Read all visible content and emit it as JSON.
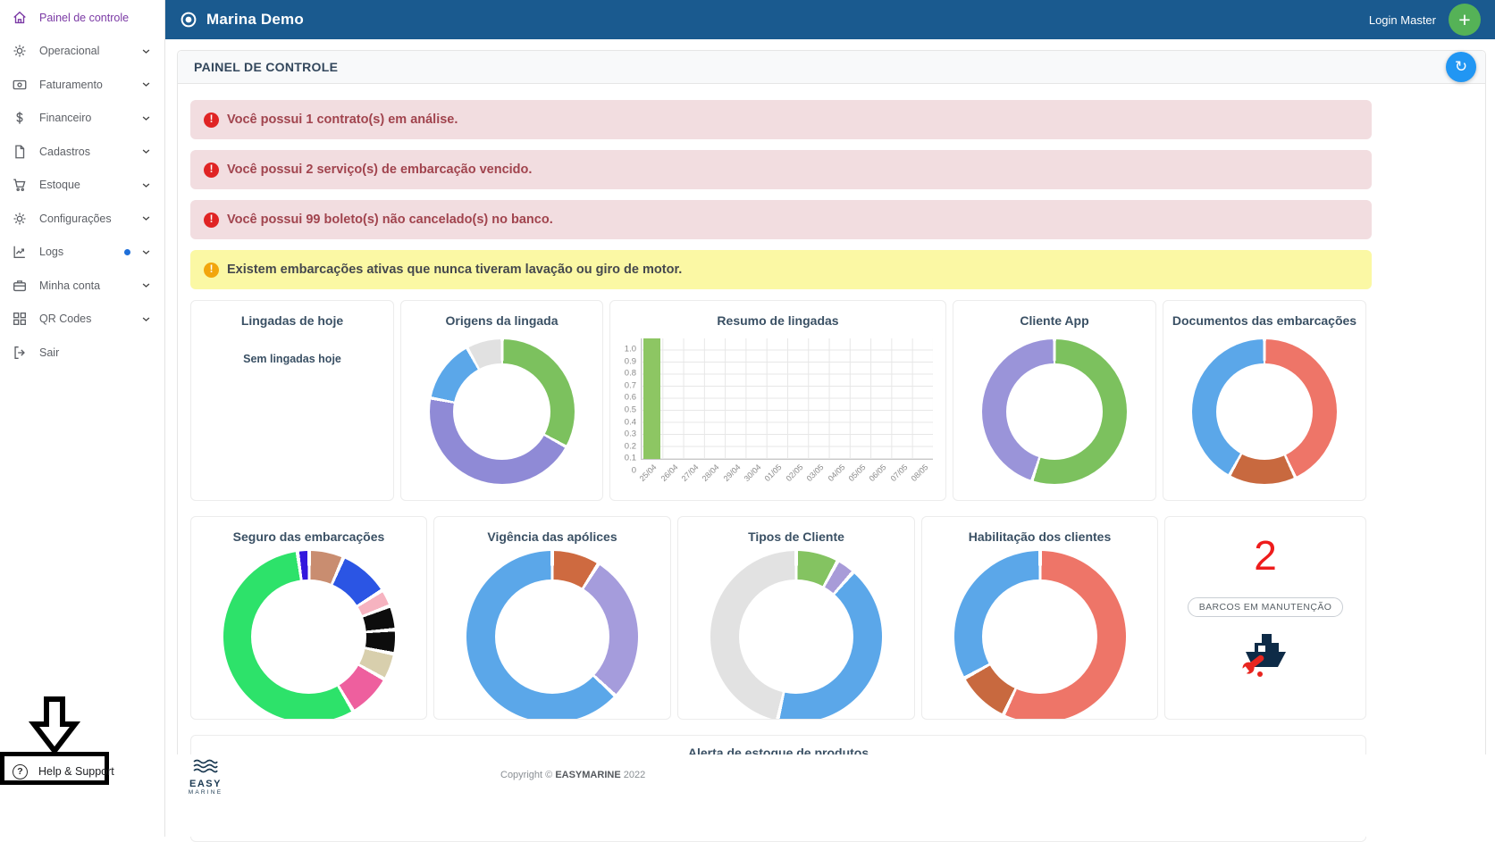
{
  "topbar": {
    "app_name": "Marina Demo",
    "user_label": "Login Master",
    "add_button_label": "+"
  },
  "sidebar": {
    "items": [
      {
        "label": "Painel de controle",
        "icon": "home-icon",
        "active": true,
        "chevron": false,
        "dot": false
      },
      {
        "label": "Operacional",
        "icon": "gear-icon",
        "active": false,
        "chevron": true,
        "dot": false
      },
      {
        "label": "Faturamento",
        "icon": "banknote-icon",
        "active": false,
        "chevron": true,
        "dot": false
      },
      {
        "label": "Financeiro",
        "icon": "dollar-icon",
        "active": false,
        "chevron": true,
        "dot": false
      },
      {
        "label": "Cadastros",
        "icon": "file-icon",
        "active": false,
        "chevron": true,
        "dot": false
      },
      {
        "label": "Estoque",
        "icon": "cart-icon",
        "active": false,
        "chevron": true,
        "dot": false
      },
      {
        "label": "Configurações",
        "icon": "gear-icon",
        "active": false,
        "chevron": true,
        "dot": false
      },
      {
        "label": "Logs",
        "icon": "chart-icon",
        "active": false,
        "chevron": true,
        "dot": true
      },
      {
        "label": "Minha conta",
        "icon": "briefcase-icon",
        "active": false,
        "chevron": true,
        "dot": false
      },
      {
        "label": "QR Codes",
        "icon": "qr-icon",
        "active": false,
        "chevron": true,
        "dot": false
      },
      {
        "label": "Sair",
        "icon": "logout-icon",
        "active": false,
        "chevron": false,
        "dot": false
      }
    ],
    "help_label": "Help & Support"
  },
  "panel": {
    "title": "PAINEL DE CONTROLE",
    "refresh_icon": "↻"
  },
  "alerts": [
    {
      "type": "danger",
      "text": "Você possui 1 contrato(s) em análise."
    },
    {
      "type": "danger",
      "text": "Você possui 2 serviço(s) de embarcação vencido."
    },
    {
      "type": "danger",
      "text": "Você possui 99 boleto(s) não cancelado(s) no banco."
    },
    {
      "type": "warning",
      "text": "Existem embarcações ativas que nunca tiveram lavação ou giro de motor."
    }
  ],
  "chart_data": [
    {
      "id": "lingadas-de-hoje",
      "type": "empty",
      "title": "Lingadas de hoje",
      "empty_message": "Sem lingadas hoje"
    },
    {
      "id": "origens-da-lingada",
      "type": "donut",
      "title": "Origens da lingada",
      "slices": [
        {
          "color": "#7cc15e",
          "value": 33
        },
        {
          "color": "#8f8ad6",
          "value": 45
        },
        {
          "color": "#5ba7e9",
          "value": 14
        },
        {
          "color": "#e1e1e1",
          "value": 8
        }
      ]
    },
    {
      "id": "resumo-de-lingadas",
      "type": "bar",
      "title": "Resumo de lingadas",
      "categories": [
        "25/04",
        "26/04",
        "27/04",
        "28/04",
        "29/04",
        "30/04",
        "01/05",
        "02/05",
        "03/05",
        "04/05",
        "05/05",
        "06/05",
        "07/05",
        "08/05"
      ],
      "values": [
        1,
        0,
        0,
        0,
        0,
        0,
        0,
        0,
        0,
        0,
        0,
        0,
        0,
        0
      ],
      "ylim": [
        0,
        1
      ],
      "yticks": [
        "1.0",
        "0.9",
        "0.8",
        "0.7",
        "0.6",
        "0.5",
        "0.4",
        "0.3",
        "0.2",
        "0.1",
        "0"
      ],
      "bar_color": "#8dc663",
      "grid": true,
      "xlabel": "",
      "ylabel": ""
    },
    {
      "id": "cliente-app",
      "type": "donut",
      "title": "Cliente App",
      "slices": [
        {
          "color": "#7cc15e",
          "value": 55
        },
        {
          "color": "#9a94d9",
          "value": 45
        }
      ]
    },
    {
      "id": "documentos-das-embarcacoes",
      "type": "donut",
      "title": "Documentos das embarcações",
      "slices": [
        {
          "color": "#ee7568",
          "value": 43
        },
        {
          "color": "#c8693f",
          "value": 15
        },
        {
          "color": "#5ba7e9",
          "value": 42
        }
      ]
    },
    {
      "id": "seguro-das-embarcacoes",
      "type": "donut",
      "title": "Seguro das embarcações",
      "slices": [
        {
          "color": "#c98d70",
          "value": 6.5
        },
        {
          "color": "#2b55e4",
          "value": 9.5
        },
        {
          "color": "#f6b3c0",
          "value": 3.2
        },
        {
          "color": "#0d0d0d",
          "value": 4.5
        },
        {
          "color": "#0d0d0d",
          "value": 4.5
        },
        {
          "color": "#d8cfad",
          "value": 5
        },
        {
          "color": "#ee5f9e",
          "value": 8.3
        },
        {
          "color": "#2de26a",
          "value": 56.3
        },
        {
          "color": "#3318dd",
          "value": 2.2
        }
      ]
    },
    {
      "id": "vigencia-das-apolices",
      "type": "donut",
      "title": "Vigência das apólices",
      "slices": [
        {
          "color": "#ce6a40",
          "value": 9
        },
        {
          "color": "#a59cdc",
          "value": 28
        },
        {
          "color": "#5ba7e9",
          "value": 63
        }
      ]
    },
    {
      "id": "tipos-de-cliente",
      "type": "donut",
      "title": "Tipos de Cliente",
      "slices": [
        {
          "color": "#84c361",
          "value": 8
        },
        {
          "color": "#a89bd8",
          "value": 3.5
        },
        {
          "color": "#5ba7e9",
          "value": 42
        },
        {
          "color": "#e2e2e2",
          "value": 46.5
        }
      ]
    },
    {
      "id": "habilitacao-dos-clientes",
      "type": "donut",
      "title": "Habilitação dos clientes",
      "slices": [
        {
          "color": "#ee7568",
          "value": 57
        },
        {
          "color": "#c8693f",
          "value": 10
        },
        {
          "color": "#5ba7e9",
          "value": 33
        }
      ]
    }
  ],
  "maintenance_card": {
    "value": "2",
    "badge": "BARCOS EM MANUTENÇÃO"
  },
  "stock_alert_card": {
    "title": "Alerta de estoque de produtos"
  },
  "footer": {
    "logo_top": "EASY",
    "logo_bottom": "MARINE",
    "copyright_prefix": "Copyright ©",
    "copyright_brand": "EASYMARINE",
    "copyright_year": "2022"
  },
  "colors": {
    "topbar": "#1a5a8f",
    "active_menu": "#7b3aa5",
    "danger_bg": "#f2dde0",
    "danger_text": "#a1444e",
    "warning_bg": "#fbf8a4",
    "add_button": "#55b257",
    "refresh_button": "#2196f3",
    "stat_red": "#ee1c1c"
  }
}
